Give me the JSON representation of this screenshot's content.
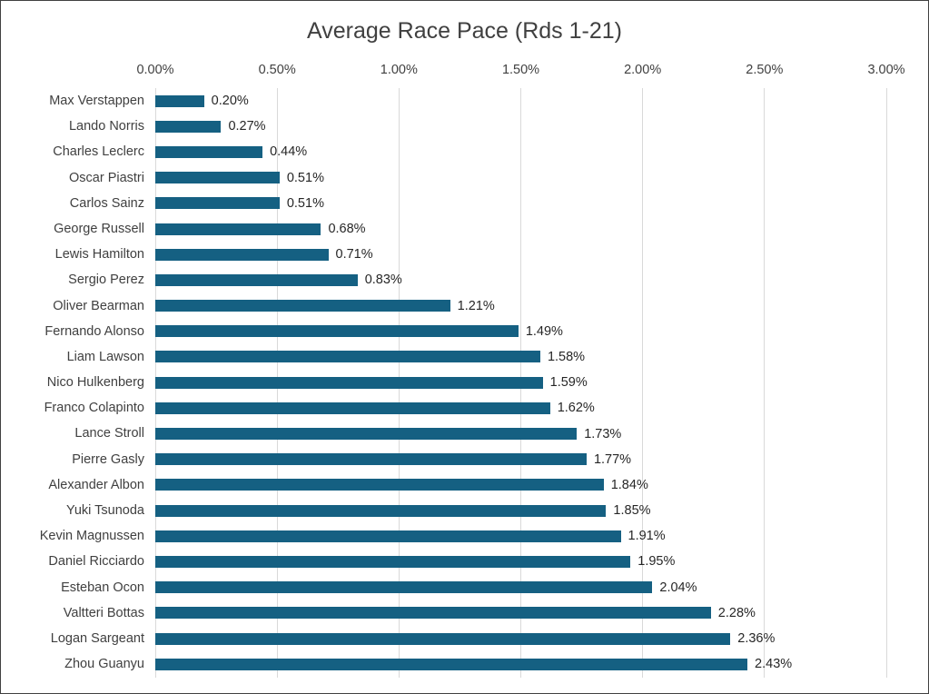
{
  "chart_data": {
    "type": "bar",
    "orientation": "horizontal",
    "title": "Average Race Pace (Rds 1-21)",
    "categories": [
      "Max Verstappen",
      "Lando Norris",
      "Charles Leclerc",
      "Oscar Piastri",
      "Carlos Sainz",
      "George Russell",
      "Lewis Hamilton",
      "Sergio Perez",
      "Oliver Bearman",
      "Fernando Alonso",
      "Liam Lawson",
      "Nico Hulkenberg",
      "Franco Colapinto",
      "Lance Stroll",
      "Pierre Gasly",
      "Alexander Albon",
      "Yuki Tsunoda",
      "Kevin Magnussen",
      "Daniel Ricciardo",
      "Esteban Ocon",
      "Valtteri Bottas",
      "Logan Sargeant",
      "Zhou Guanyu"
    ],
    "values": [
      0.2,
      0.27,
      0.44,
      0.51,
      0.51,
      0.68,
      0.71,
      0.83,
      1.21,
      1.49,
      1.58,
      1.59,
      1.62,
      1.73,
      1.77,
      1.84,
      1.85,
      1.91,
      1.95,
      2.04,
      2.28,
      2.36,
      2.43
    ],
    "value_labels": [
      "0.20%",
      "0.27%",
      "0.44%",
      "0.51%",
      "0.51%",
      "0.68%",
      "0.71%",
      "0.83%",
      "1.21%",
      "1.49%",
      "1.58%",
      "1.59%",
      "1.62%",
      "1.73%",
      "1.77%",
      "1.84%",
      "1.85%",
      "1.91%",
      "1.95%",
      "2.04%",
      "2.28%",
      "2.36%",
      "2.43%"
    ],
    "x_ticks": [
      "0.00%",
      "0.50%",
      "1.00%",
      "1.50%",
      "2.00%",
      "2.50%",
      "3.00%"
    ],
    "x_tick_values": [
      0,
      0.5,
      1.0,
      1.5,
      2.0,
      2.5,
      3.0
    ],
    "xlim": [
      0,
      3
    ],
    "xlabel": "",
    "ylabel": "",
    "grid": true,
    "axis_position": "top",
    "legend": false,
    "bar_color": "#156082",
    "gridline_color": "#D9D9D9",
    "title_color": "#404040",
    "background_color": "#ffffff"
  }
}
